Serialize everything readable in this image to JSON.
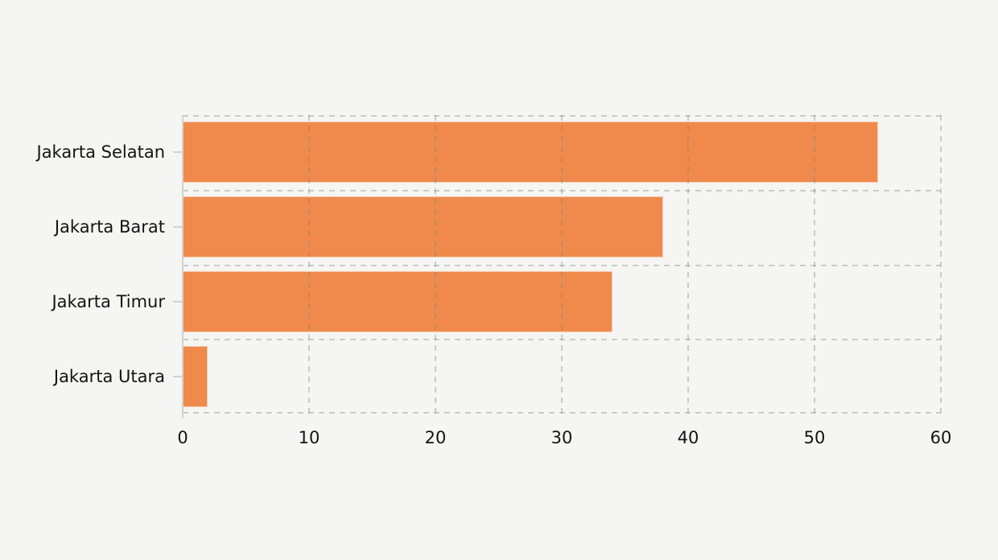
{
  "chart_data": {
    "type": "bar",
    "orientation": "horizontal",
    "title": "",
    "xlabel": "",
    "ylabel": "",
    "categories": [
      "Jakarta Selatan",
      "Jakarta Barat",
      "Jakarta Timur",
      "Jakarta Utara"
    ],
    "values": [
      55,
      38,
      34,
      2
    ],
    "xlim": [
      0,
      60
    ],
    "xticks": [
      "0",
      "10",
      "20",
      "30",
      "40",
      "50",
      "60"
    ],
    "grid": "dashed, drawn above bars, vertical at every x tick and horizontal at every category boundary",
    "legend": "none",
    "colors": {
      "bar": "#ef8a4c",
      "background": "#f5f5f3",
      "grid": "#c9c9c9",
      "axis": "#d2d2d0",
      "text": "#141414"
    }
  }
}
